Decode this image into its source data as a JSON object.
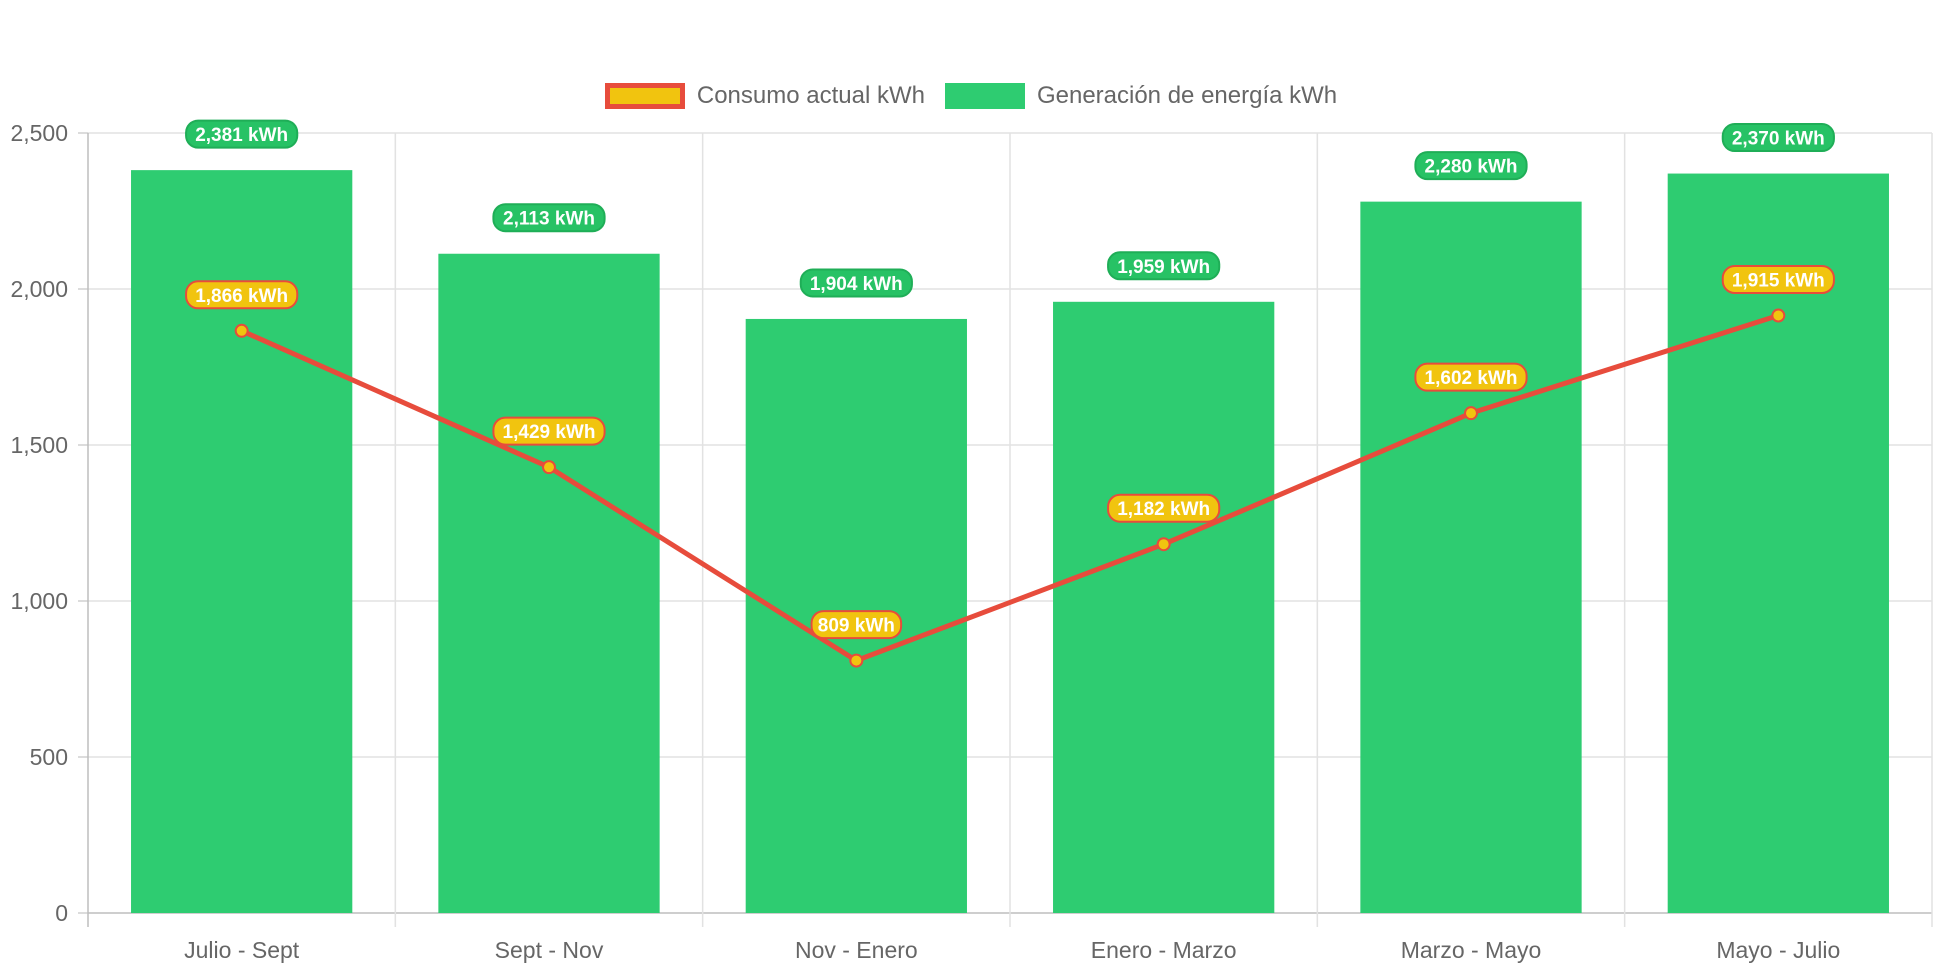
{
  "chart_data": {
    "type": "bar",
    "categories": [
      "Julio - Sept",
      "Sept - Nov",
      "Nov - Enero",
      "Enero - Marzo",
      "Marzo - Mayo",
      "Mayo - Julio"
    ],
    "series": [
      {
        "name": "Consumo actual kWh",
        "type": "line",
        "values": [
          1866,
          1429,
          809,
          1182,
          1602,
          1915
        ],
        "labels": [
          "1,866 kWh",
          "1,429 kWh",
          "809 kWh",
          "1,182 kWh",
          "1,602 kWh",
          "1,915 kWh"
        ],
        "color": "#e74c3c",
        "fill": "#f1c40f"
      },
      {
        "name": "Generación de energía kWh",
        "type": "bar",
        "values": [
          2381,
          2113,
          1904,
          1959,
          2280,
          2370
        ],
        "labels": [
          "2,381 kWh",
          "2,113 kWh",
          "1,904 kWh",
          "1,959 kWh",
          "2,280 kWh",
          "2,370 kWh"
        ],
        "color": "#2ecc71",
        "label_bg": "#27c265"
      }
    ],
    "ylim": [
      0,
      2500
    ],
    "yticks": [
      "0",
      "500",
      "1,000",
      "1,500",
      "2,000",
      "2,500"
    ],
    "ytick_values": [
      0,
      500,
      1000,
      1500,
      2000,
      2500
    ],
    "grid": true,
    "legend": "top-center"
  }
}
